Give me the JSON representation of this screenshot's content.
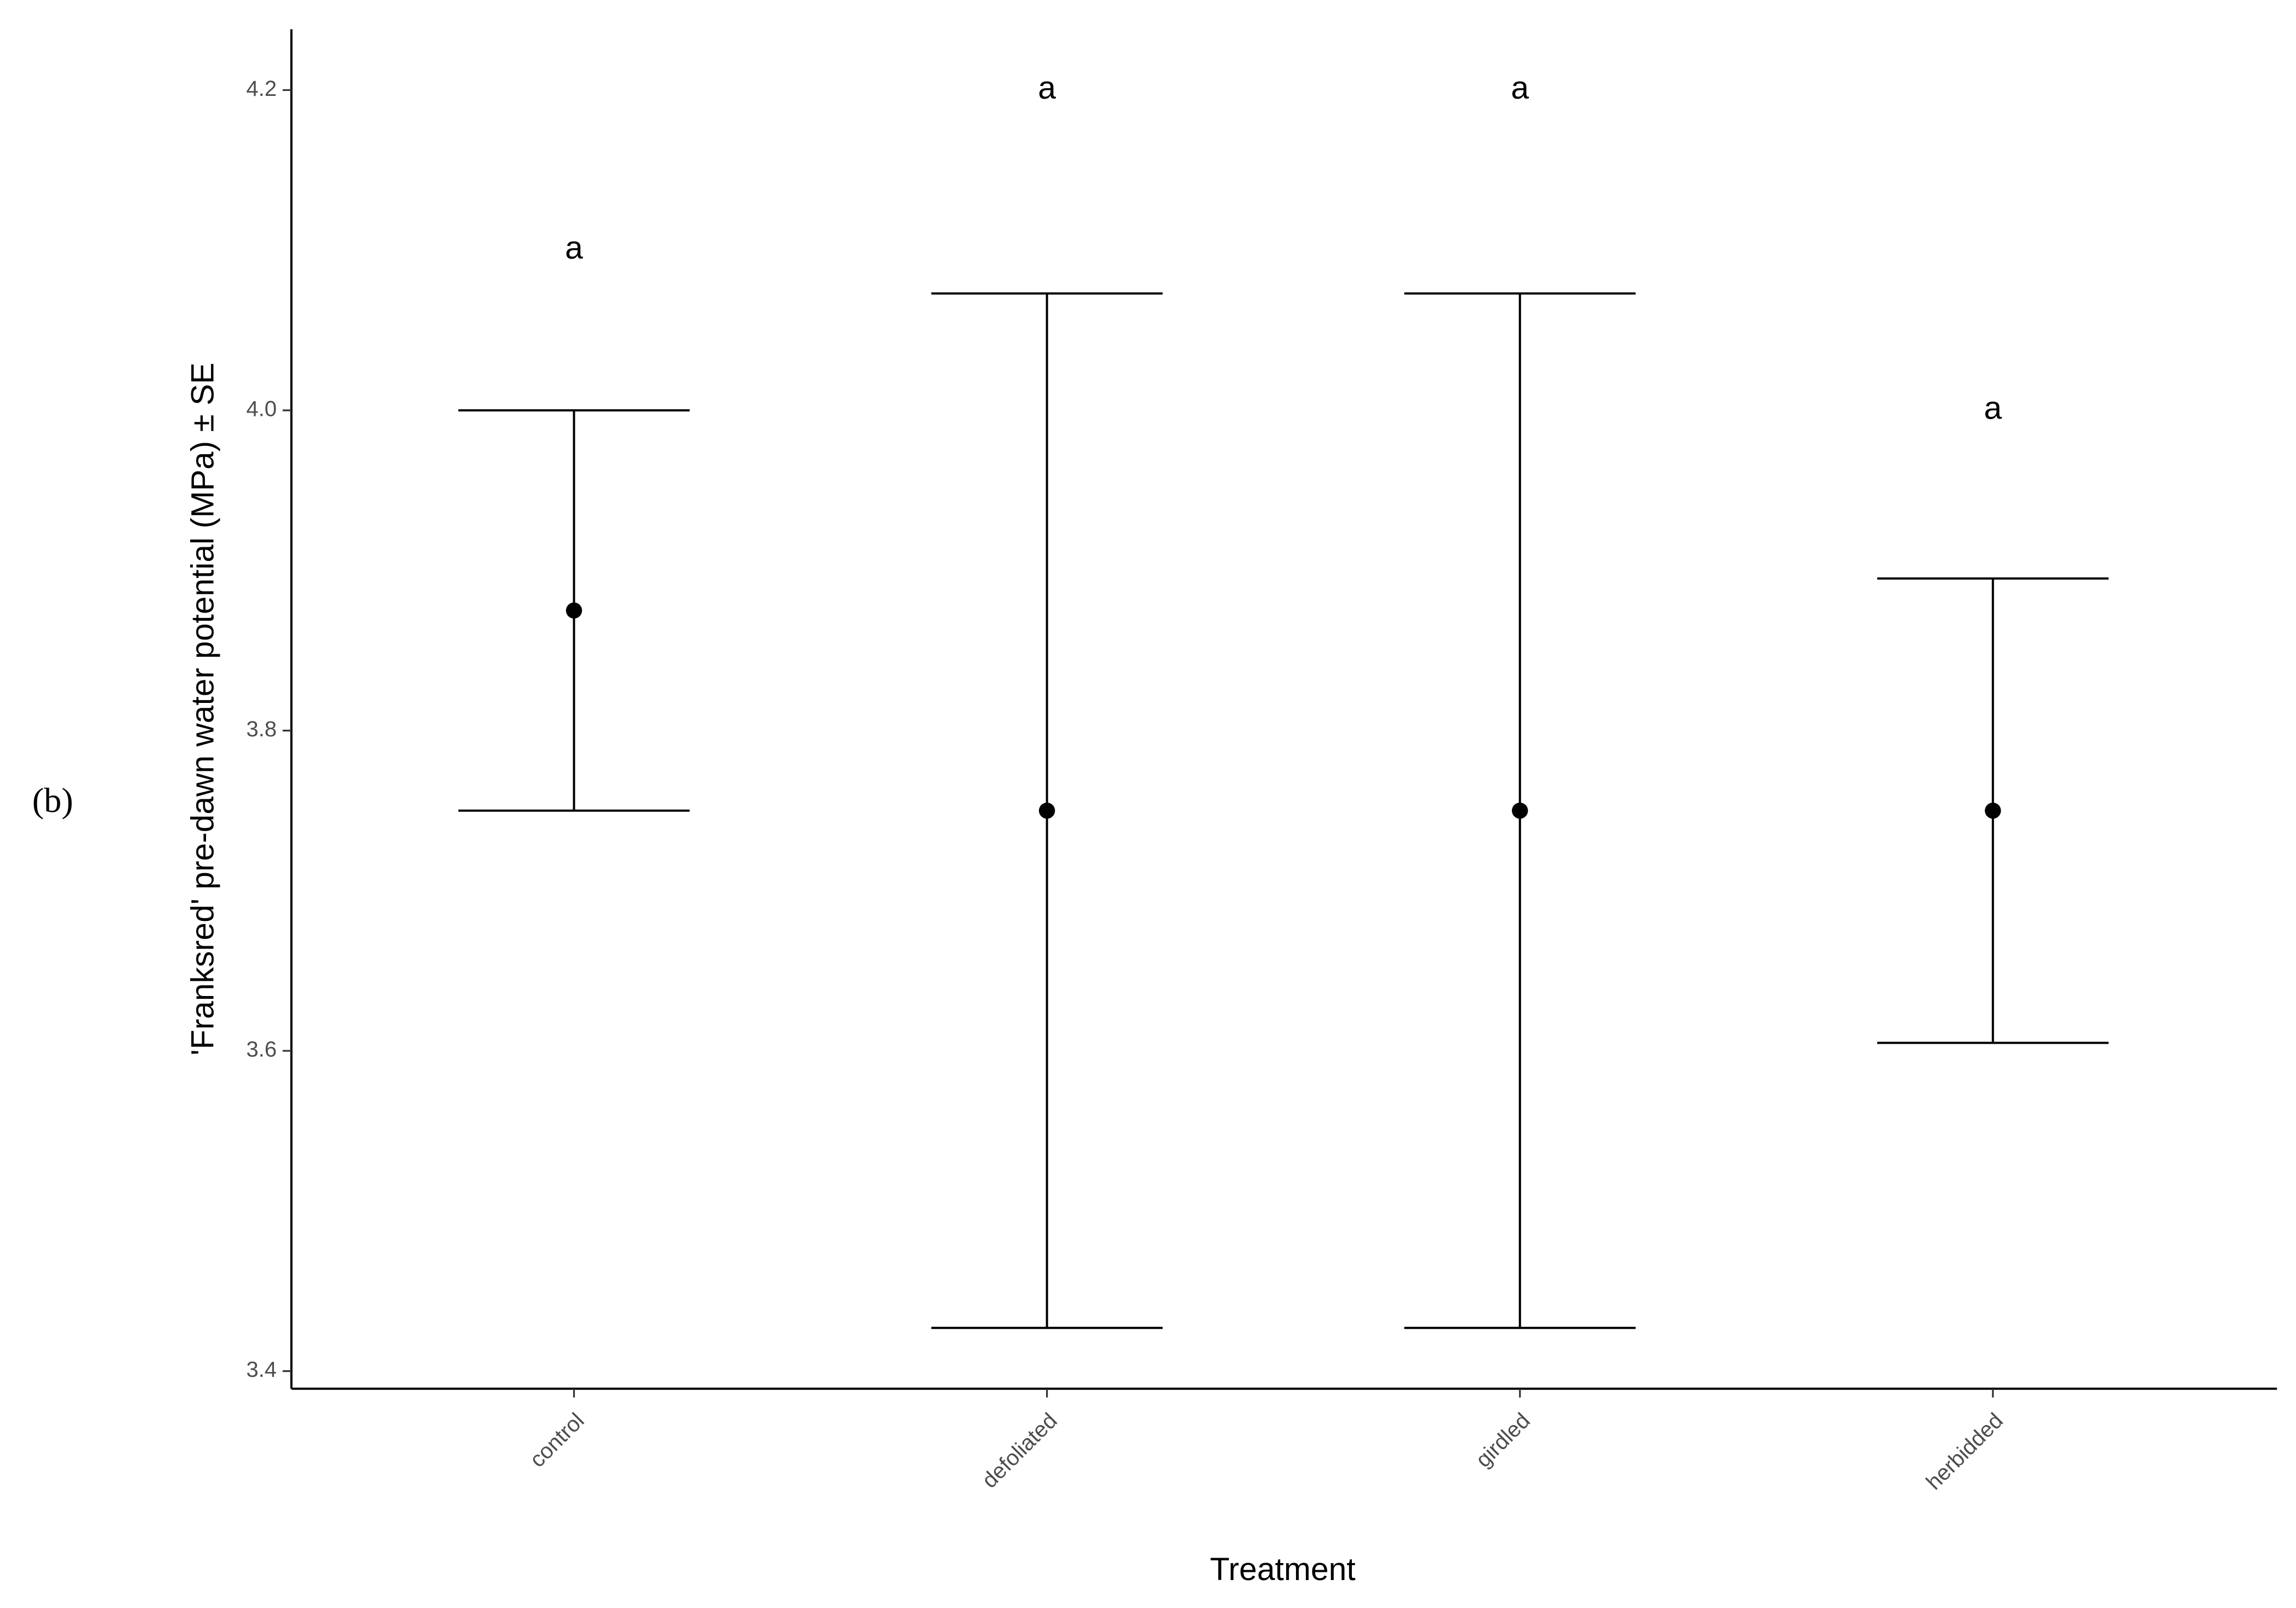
{
  "chart_data": {
    "type": "errorbar",
    "panel_label": "(b)",
    "x_label": "Treatment",
    "y_label": "'Franksred' pre-dawn water potential (MPa) ± SE",
    "categories": [
      "control",
      "defoliated",
      "girdled",
      "herbidded"
    ],
    "values": [
      3.875,
      3.75,
      3.75,
      3.75
    ],
    "errors": [
      0.125,
      0.323,
      0.323,
      0.145
    ],
    "color": "#000000",
    "ylim": [
      3.389,
      4.238
    ],
    "yticks": [
      {
        "value": 3.4,
        "label": "3.4"
      },
      {
        "value": 3.6,
        "label": "3.6"
      },
      {
        "value": 3.8,
        "label": "3.8"
      },
      {
        "value": 4.0,
        "label": "4.0"
      },
      {
        "value": 4.2,
        "label": "4.2"
      }
    ],
    "annotations": [
      {
        "text": "a",
        "x": "control",
        "y": 4.1
      },
      {
        "text": "a",
        "x": "defoliated",
        "y": 4.2
      },
      {
        "text": "a",
        "x": "girdled",
        "y": 4.2
      },
      {
        "text": "a",
        "x": "herbidded",
        "y": 4.0
      }
    ]
  }
}
